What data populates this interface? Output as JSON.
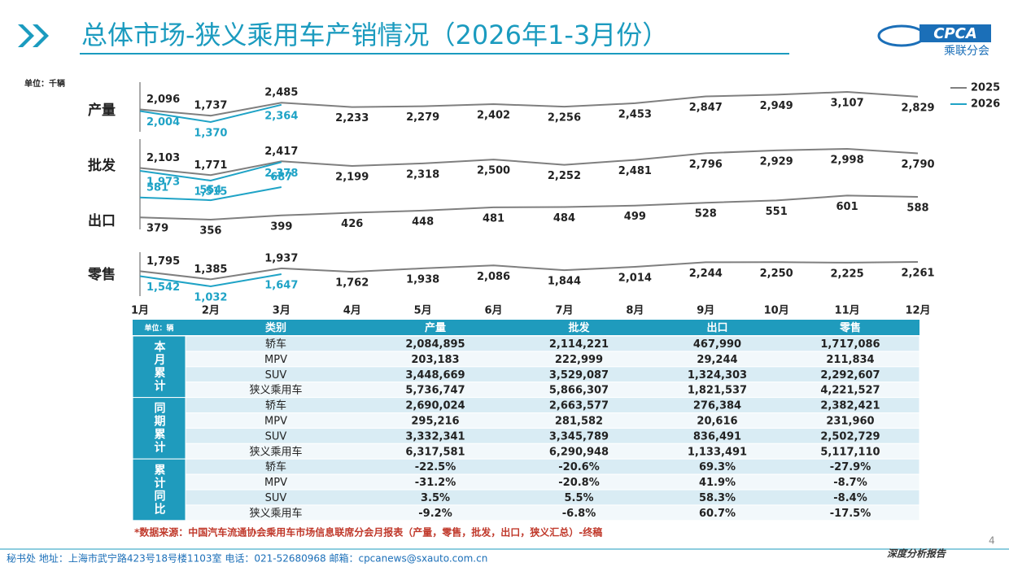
{
  "header": {
    "title": "总体市场-狭义乘用车产销情况（2026年1-3月份）",
    "logo": "CPCA",
    "logo_sub": "乘联分会"
  },
  "unit": "单位：千辆",
  "chart_data": {
    "type": "line",
    "categories": [
      "1月",
      "2月",
      "3月",
      "4月",
      "5月",
      "6月",
      "7月",
      "8月",
      "9月",
      "10月",
      "11月",
      "12月"
    ],
    "series": [
      {
        "name": "2025",
        "color": "#7f7f7f"
      },
      {
        "name": "2026",
        "color": "#1fa3c6"
      }
    ],
    "panels": [
      {
        "label": "产量",
        "series": [
          {
            "values": [
              2096,
              1737,
              2485,
              2233,
              2279,
              2402,
              2256,
              2453,
              2847,
              2949,
              3107,
              2829
            ],
            "value_labels": [
              "2,096",
              "1,737",
              "2,485",
              "2,233",
              "2,279",
              "2,402",
              "2,256",
              "2,453",
              "2,847",
              "2,949",
              "3,107",
              "2,829"
            ]
          },
          {
            "values": [
              2004,
              1370,
              2364,
              null,
              null,
              null,
              null,
              null,
              null,
              null,
              null,
              null
            ],
            "value_labels": [
              "2,004",
              "1,370",
              "2,364",
              null,
              null,
              null,
              null,
              null,
              null,
              null,
              null,
              null
            ]
          }
        ]
      },
      {
        "label": "批发",
        "series": [
          {
            "values": [
              2103,
              1771,
              2417,
              2199,
              2318,
              2500,
              2252,
              2481,
              2796,
              2929,
              2998,
              2790
            ],
            "value_labels": [
              "2,103",
              "1,771",
              "2,417",
              "2,199",
              "2,318",
              "2,500",
              "2,252",
              "2,481",
              "2,796",
              "2,929",
              "2,998",
              "2,790"
            ]
          },
          {
            "values": [
              1973,
              1515,
              2378,
              null,
              null,
              null,
              null,
              null,
              null,
              null,
              null,
              null
            ],
            "value_labels": [
              "1,973",
              "1,515",
              "2,378",
              null,
              null,
              null,
              null,
              null,
              null,
              null,
              null,
              null
            ]
          }
        ]
      },
      {
        "label": "出口",
        "series": [
          {
            "values": [
              379,
              356,
              399,
              426,
              448,
              481,
              484,
              499,
              528,
              551,
              601,
              588
            ]
          },
          {
            "values": [
              581,
              554,
              687,
              null,
              null,
              null,
              null,
              null,
              null,
              null,
              null,
              null
            ]
          }
        ]
      },
      {
        "label": "零售",
        "series": [
          {
            "values": [
              1795,
              1385,
              1937,
              1762,
              1938,
              2086,
              1844,
              2014,
              2244,
              2250,
              2225,
              2261
            ],
            "value_labels": [
              "1,795",
              "1,385",
              "1,937",
              "1,762",
              "1,938",
              "2,086",
              "1,844",
              "2,014",
              "2,244",
              "2,250",
              "2,225",
              "2,261"
            ]
          },
          {
            "values": [
              1542,
              1032,
              1647,
              null,
              null,
              null,
              null,
              null,
              null,
              null,
              null,
              null
            ],
            "value_labels": [
              "1,542",
              "1,032",
              "1,647",
              null,
              null,
              null,
              null,
              null,
              null,
              null,
              null,
              null
            ]
          }
        ]
      }
    ]
  },
  "table": {
    "header": [
      "单位：辆",
      "类别",
      "产量",
      "批发",
      "出口",
      "零售"
    ],
    "groups": [
      {
        "label": "本月累计",
        "rows": [
          [
            "轿车",
            "2,084,895",
            "2,114,221",
            "467,990",
            "1,717,086"
          ],
          [
            "MPV",
            "203,183",
            "222,999",
            "29,244",
            "211,834"
          ],
          [
            "SUV",
            "3,448,669",
            "3,529,087",
            "1,324,303",
            "2,292,607"
          ],
          [
            "狭义乘用车",
            "5,736,747",
            "5,866,307",
            "1,821,537",
            "4,221,527"
          ]
        ]
      },
      {
        "label": "同期累计",
        "rows": [
          [
            "轿车",
            "2,690,024",
            "2,663,577",
            "276,384",
            "2,382,421"
          ],
          [
            "MPV",
            "295,216",
            "281,582",
            "20,616",
            "231,960"
          ],
          [
            "SUV",
            "3,332,341",
            "3,345,789",
            "836,491",
            "2,502,729"
          ],
          [
            "狭义乘用车",
            "6,317,581",
            "6,290,948",
            "1,133,491",
            "5,117,110"
          ]
        ]
      },
      {
        "label": "累计同比",
        "rows": [
          [
            "轿车",
            "-22.5%",
            "-20.6%",
            "69.3%",
            "-27.9%"
          ],
          [
            "MPV",
            "-31.2%",
            "-20.8%",
            "41.9%",
            "-8.7%"
          ],
          [
            "SUV",
            "3.5%",
            "5.5%",
            "58.3%",
            "-8.4%"
          ],
          [
            "狭义乘用车",
            "-9.2%",
            "-6.8%",
            "60.7%",
            "-17.5%"
          ]
        ]
      }
    ]
  },
  "source": "*数据来源：中国汽车流通协会乘用车市场信息联席分会月报表（产量，零售，批发，出口，狭义汇总）-终稿",
  "footer": {
    "address": "秘书处  地址：上海市武宁路423号18号楼1103室  电话：021-52680968   邮箱：cpcanews@sxauto.com.cn",
    "report": "深度分析报告",
    "page": "4"
  }
}
